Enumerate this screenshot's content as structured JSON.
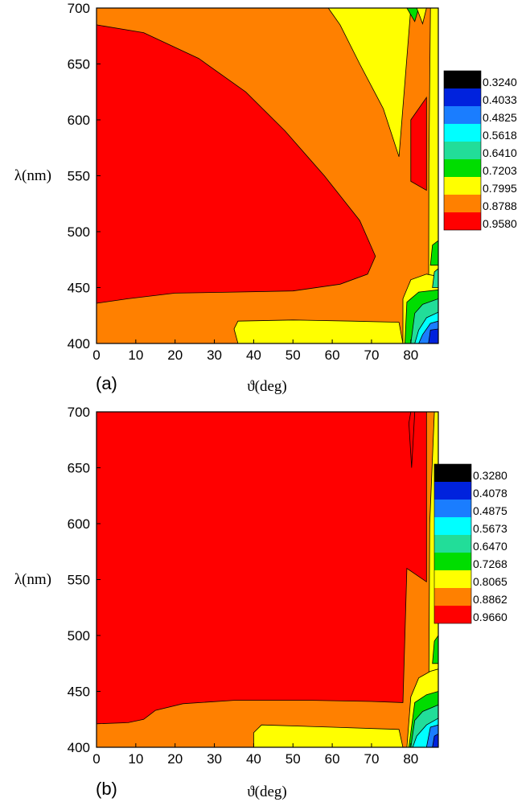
{
  "colors": {
    "level_fills": [
      "#000000",
      "#0022dd",
      "#1a7dff",
      "#00ffff",
      "#22dd99",
      "#00dd00",
      "#ffff00",
      "#ff8000",
      "#ff0000"
    ],
    "contour_line": "#000000"
  },
  "chart_data": [
    {
      "type": "contour",
      "panel_label": "(a)",
      "xlabel": "ϑ(deg)",
      "ylabel": "λ(nm)",
      "xlim": [
        0,
        87
      ],
      "ylim": [
        400,
        700
      ],
      "x_ticks": [
        0,
        10,
        20,
        30,
        40,
        50,
        60,
        70,
        80
      ],
      "y_ticks": [
        400,
        450,
        500,
        550,
        600,
        650,
        700
      ],
      "grid": false,
      "colorbar_levels": [
        "0.3240",
        "0.4033",
        "0.4825",
        "0.5618",
        "0.6410",
        "0.7203",
        "0.7995",
        "0.8788",
        "0.9580"
      ],
      "regions": [
        {
          "level": 7,
          "points": [
            [
              0,
              400
            ],
            [
              87,
              400
            ],
            [
              87,
              700
            ],
            [
              0,
              700
            ]
          ]
        },
        {
          "level": 8,
          "points": [
            [
              0,
              436
            ],
            [
              8,
              440
            ],
            [
              20,
              445
            ],
            [
              35,
              446
            ],
            [
              50,
              447
            ],
            [
              62,
              453
            ],
            [
              69,
              462
            ],
            [
              71,
              478
            ],
            [
              67,
              510
            ],
            [
              58,
              550
            ],
            [
              48,
              590
            ],
            [
              38,
              625
            ],
            [
              26,
              655
            ],
            [
              12,
              678
            ],
            [
              0,
              685
            ]
          ]
        },
        {
          "level": 6,
          "points": [
            [
              59,
              700
            ],
            [
              80,
              700
            ],
            [
              77,
              567
            ],
            [
              73,
              610
            ],
            [
              67,
              650
            ],
            [
              62,
              685
            ]
          ]
        },
        {
          "level": 5,
          "points": [
            [
              79,
              700
            ],
            [
              82,
              700
            ],
            [
              81,
              688
            ],
            [
              80,
              694
            ]
          ]
        },
        {
          "level": 6,
          "points": [
            [
              81.5,
              700
            ],
            [
              84,
              700
            ],
            [
              83,
              686
            ]
          ]
        },
        {
          "level": 8,
          "points": [
            [
              80,
              545
            ],
            [
              84,
              537
            ],
            [
              84,
              620
            ],
            [
              80,
              600
            ]
          ]
        },
        {
          "level": 6,
          "points": [
            [
              84.5,
              400
            ],
            [
              87,
              400
            ],
            [
              87,
              700
            ],
            [
              85,
              700
            ],
            [
              84.6,
              560
            ]
          ]
        },
        {
          "level": 6,
          "points": [
            [
              35,
              413
            ],
            [
              36,
              420
            ],
            [
              50,
              421
            ],
            [
              65,
              420
            ],
            [
              77,
              419
            ],
            [
              78,
              400
            ],
            [
              36,
              400
            ]
          ]
        },
        {
          "level": 6,
          "points": [
            [
              78,
              400
            ],
            [
              87,
              400
            ],
            [
              87,
              460
            ],
            [
              84,
              462
            ],
            [
              80,
              457
            ],
            [
              78,
              440
            ]
          ]
        },
        {
          "level": 5,
          "points": [
            [
              78.5,
              400
            ],
            [
              87,
              400
            ],
            [
              87,
              448
            ],
            [
              82,
              446
            ],
            [
              79,
              437
            ]
          ]
        },
        {
          "level": 4,
          "points": [
            [
              80,
              400
            ],
            [
              87,
              400
            ],
            [
              87,
              440
            ],
            [
              83,
              435
            ],
            [
              81,
              427
            ]
          ]
        },
        {
          "level": 3,
          "points": [
            [
              81,
              400
            ],
            [
              87,
              400
            ],
            [
              87,
              428
            ],
            [
              84,
              423
            ],
            [
              82,
              412
            ]
          ]
        },
        {
          "level": 2,
          "points": [
            [
              82,
              400
            ],
            [
              87,
              400
            ],
            [
              87,
              420
            ],
            [
              85,
              418
            ],
            [
              83,
              408
            ]
          ]
        },
        {
          "level": 1,
          "points": [
            [
              84.5,
              400
            ],
            [
              87,
              400
            ],
            [
              87,
              413
            ],
            [
              85,
              412
            ]
          ]
        },
        {
          "level": 5,
          "points": [
            [
              85,
              470
            ],
            [
              87,
              470
            ],
            [
              87,
              492
            ],
            [
              85.5,
              488
            ]
          ]
        },
        {
          "level": 4,
          "points": [
            [
              85.5,
              450
            ],
            [
              87,
              450
            ],
            [
              87,
              467
            ],
            [
              86,
              464
            ]
          ]
        }
      ]
    },
    {
      "type": "contour",
      "panel_label": "(b)",
      "xlabel": "ϑ(deg)",
      "ylabel": "λ(nm)",
      "xlim": [
        0,
        87
      ],
      "ylim": [
        400,
        700
      ],
      "x_ticks": [
        0,
        10,
        20,
        30,
        40,
        50,
        60,
        70,
        80
      ],
      "y_ticks": [
        400,
        450,
        500,
        550,
        600,
        650,
        700
      ],
      "grid": false,
      "colorbar_levels": [
        "0.3280",
        "0.4078",
        "0.4875",
        "0.5673",
        "0.6470",
        "0.7268",
        "0.8065",
        "0.8862",
        "0.9660"
      ],
      "regions": [
        {
          "level": 7,
          "points": [
            [
              0,
              400
            ],
            [
              87,
              400
            ],
            [
              87,
              700
            ],
            [
              0,
              700
            ]
          ]
        },
        {
          "level": 8,
          "points": [
            [
              0,
              421
            ],
            [
              8,
              422
            ],
            [
              12,
              425
            ],
            [
              15,
              433
            ],
            [
              22,
              439
            ],
            [
              35,
              442
            ],
            [
              55,
              442
            ],
            [
              70,
              441
            ],
            [
              78,
              440
            ],
            [
              79,
              560
            ],
            [
              84,
              548
            ],
            [
              84,
              700
            ],
            [
              0,
              700
            ]
          ]
        },
        {
          "level": 6,
          "points": [
            [
              40,
              400
            ],
            [
              40,
              413
            ],
            [
              42,
              420
            ],
            [
              60,
              418
            ],
            [
              77,
              416
            ],
            [
              78,
              400
            ]
          ]
        },
        {
          "level": 8,
          "points": [
            [
              80,
              700
            ],
            [
              81,
              700
            ],
            [
              80.2,
              650
            ],
            [
              79.5,
              690
            ]
          ]
        },
        {
          "level": 6,
          "points": [
            [
              84.5,
              400
            ],
            [
              87,
              400
            ],
            [
              87,
              700
            ],
            [
              86,
              700
            ],
            [
              84.8,
              600
            ]
          ]
        },
        {
          "level": 6,
          "points": [
            [
              79,
              400
            ],
            [
              87,
              400
            ],
            [
              87,
              470
            ],
            [
              85,
              468
            ],
            [
              82,
              462
            ],
            [
              80,
              445
            ]
          ]
        },
        {
          "level": 5,
          "points": [
            [
              79.5,
              400
            ],
            [
              87,
              400
            ],
            [
              87,
              450
            ],
            [
              84,
              447
            ],
            [
              81,
              440
            ]
          ]
        },
        {
          "level": 4,
          "points": [
            [
              80,
              400
            ],
            [
              87,
              400
            ],
            [
              87,
              438
            ],
            [
              83,
              432
            ],
            [
              81,
              424
            ]
          ]
        },
        {
          "level": 3,
          "points": [
            [
              80.5,
              400
            ],
            [
              87,
              400
            ],
            [
              87,
              426
            ],
            [
              84,
              420
            ],
            [
              81.5,
              410
            ]
          ]
        },
        {
          "level": 2,
          "points": [
            [
              84,
              400
            ],
            [
              87,
              400
            ],
            [
              87,
              420
            ],
            [
              85,
              418
            ]
          ]
        },
        {
          "level": 1,
          "points": [
            [
              85.5,
              400
            ],
            [
              87,
              400
            ],
            [
              87,
              412
            ],
            [
              86,
              410
            ]
          ]
        },
        {
          "level": 5,
          "points": [
            [
              85.5,
              475
            ],
            [
              87,
              475
            ],
            [
              87,
              500
            ],
            [
              86,
              495
            ]
          ]
        }
      ]
    }
  ]
}
